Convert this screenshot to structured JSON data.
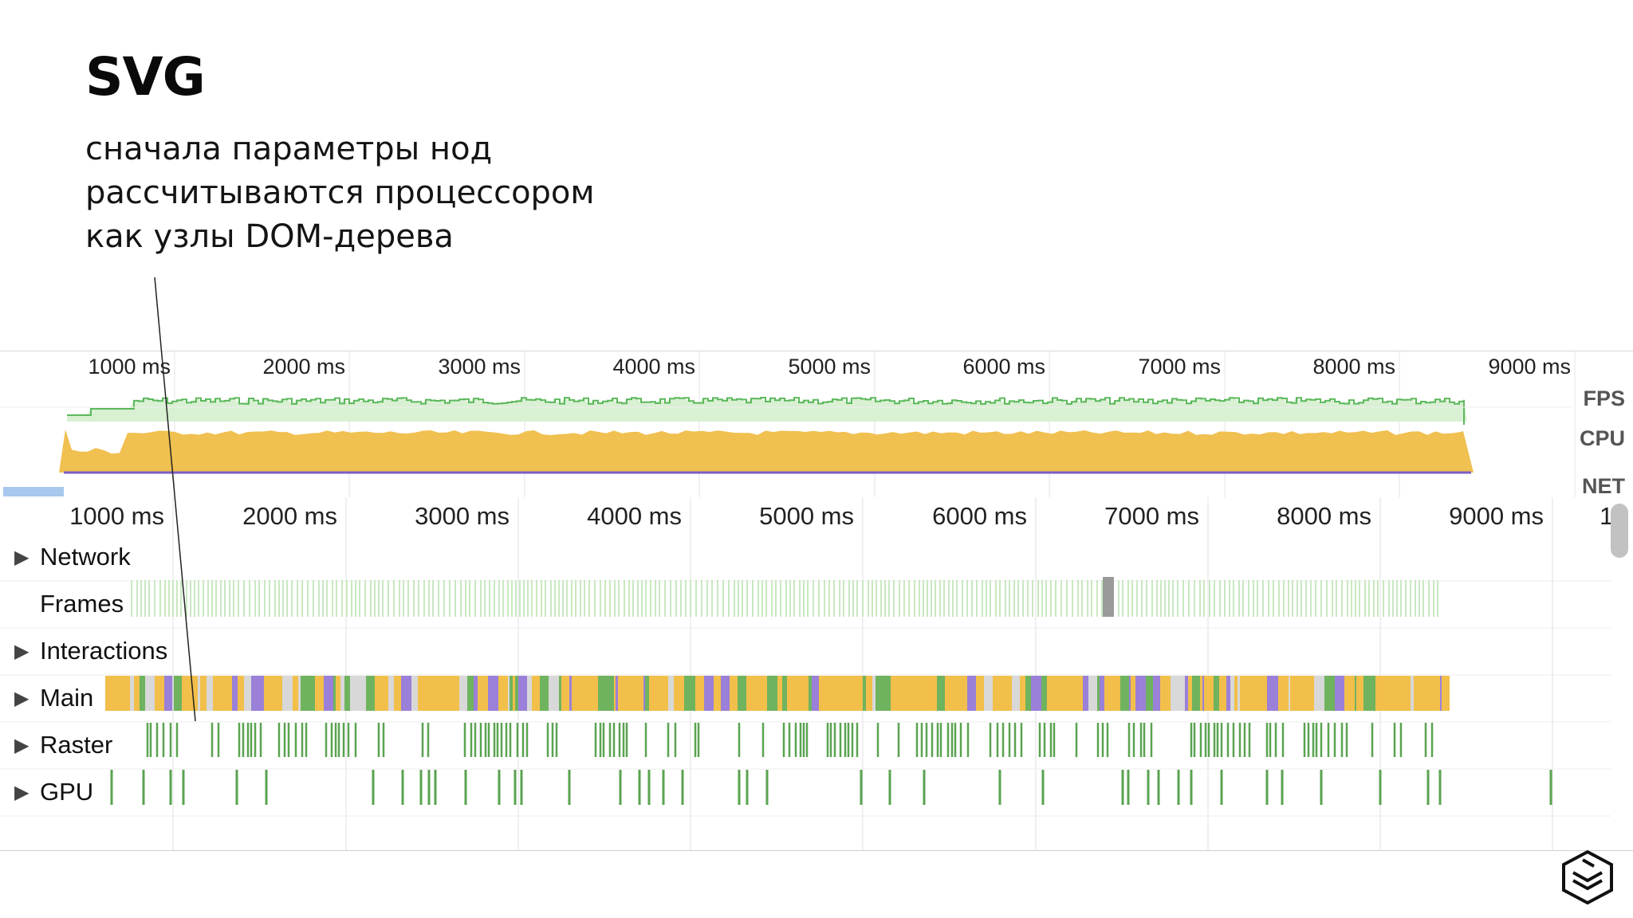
{
  "slide": {
    "title": "SVG",
    "body_lines": [
      "сначала параметры нод",
      "рассчитываются процессором",
      "как узлы DOM-дерева"
    ]
  },
  "overview": {
    "ticks": [
      "1000 ms",
      "2000 ms",
      "3000 ms",
      "4000 ms",
      "5000 ms",
      "6000 ms",
      "7000 ms",
      "8000 ms",
      "9000 ms"
    ],
    "labels": {
      "fps": "FPS",
      "cpu": "CPU",
      "net": "NET"
    }
  },
  "flame": {
    "ticks": [
      "1000 ms",
      "2000 ms",
      "3000 ms",
      "4000 ms",
      "5000 ms",
      "6000 ms",
      "7000 ms",
      "8000 ms",
      "9000 ms"
    ],
    "cut_tick": "1",
    "tracks": [
      {
        "name": "Network",
        "arrow": "▶"
      },
      {
        "name": "Frames",
        "arrow": ""
      },
      {
        "name": "Interactions",
        "arrow": "▶"
      },
      {
        "name": "Main",
        "arrow": "▶"
      },
      {
        "name": "Raster",
        "arrow": "▶"
      },
      {
        "name": "GPU",
        "arrow": "▶"
      }
    ]
  },
  "colors": {
    "fps_line": "#5cb85c",
    "fps_fill": "#d9f0d3",
    "cpu_fill": "#f0c050",
    "gpu_line": "#7c5cc4",
    "raster": "#5aa350",
    "frames": "#c9e8c0",
    "main_yellow": "#f2bf4a",
    "main_purple": "#9a80d8",
    "main_green": "#6fb35f",
    "main_grey": "#d8d8d8"
  },
  "brand": {
    "logo_icon": "stacked-layers-logo-icon"
  }
}
